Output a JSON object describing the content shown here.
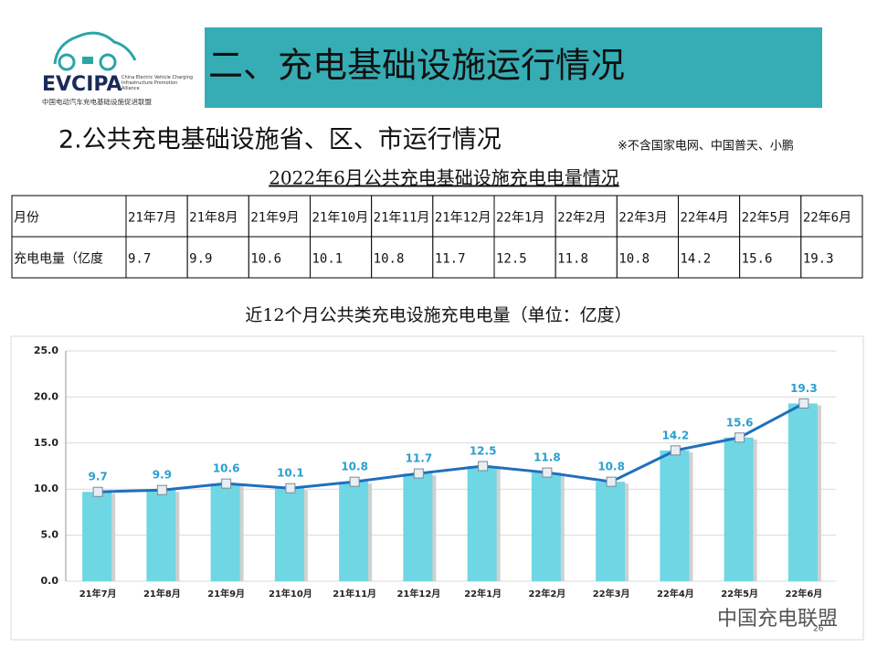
{
  "header": {
    "logo_text": "EVCIPA",
    "logo_subtitle_en": "China Electric Vehicle Charging Infrastructure Promotion Alliance",
    "logo_subtitle_cn": "中国电动汽车充电基础设施促进联盟",
    "title": "二、充电基础设施运行情况"
  },
  "section": {
    "title": "2.公共充电基础设施省、区、市运行情况",
    "note": "※不含国家电网、中国普天、小鹏"
  },
  "table": {
    "title": "2022年6月公共充电基础设施充电电量情况",
    "rows": [
      [
        "月份",
        "21年7月",
        "21年8月",
        "21年9月",
        "21年10月",
        "21年11月",
        "21年12月",
        "22年1月",
        "22年2月",
        "22年3月",
        "22年4月",
        "22年5月",
        "22年6月"
      ],
      [
        "充电电量（亿度",
        "9.7",
        "9.9",
        "10.6",
        "10.1",
        "10.8",
        "11.7",
        "12.5",
        "11.8",
        "10.8",
        "14.2",
        "15.6",
        "19.3"
      ]
    ]
  },
  "chart_data": {
    "type": "bar-line",
    "title": "近12个月公共类充电设施充电电量（单位：亿度）",
    "categories": [
      "21年7月",
      "21年8月",
      "21年9月",
      "21年10月",
      "21年11月",
      "21年12月",
      "22年1月",
      "22年2月",
      "22年3月",
      "22年4月",
      "22年5月",
      "22年6月"
    ],
    "values": [
      9.7,
      9.9,
      10.6,
      10.1,
      10.8,
      11.7,
      12.5,
      11.8,
      10.8,
      14.2,
      15.6,
      19.3
    ],
    "bar_color": "#6fd6e4",
    "line_color": "#1f6fbf",
    "ylim": [
      0,
      25
    ],
    "yticks": [
      {
        "value": 0,
        "label": "0.0"
      },
      {
        "value": 5,
        "label": "5.0"
      },
      {
        "value": 10,
        "label": "10.0"
      },
      {
        "value": 15,
        "label": "15.0"
      },
      {
        "value": 20,
        "label": "20.0"
      },
      {
        "value": 25,
        "label": "25.0"
      }
    ],
    "grid": true
  },
  "footer": {
    "watermark": "中国充电联盟",
    "page": "26"
  }
}
